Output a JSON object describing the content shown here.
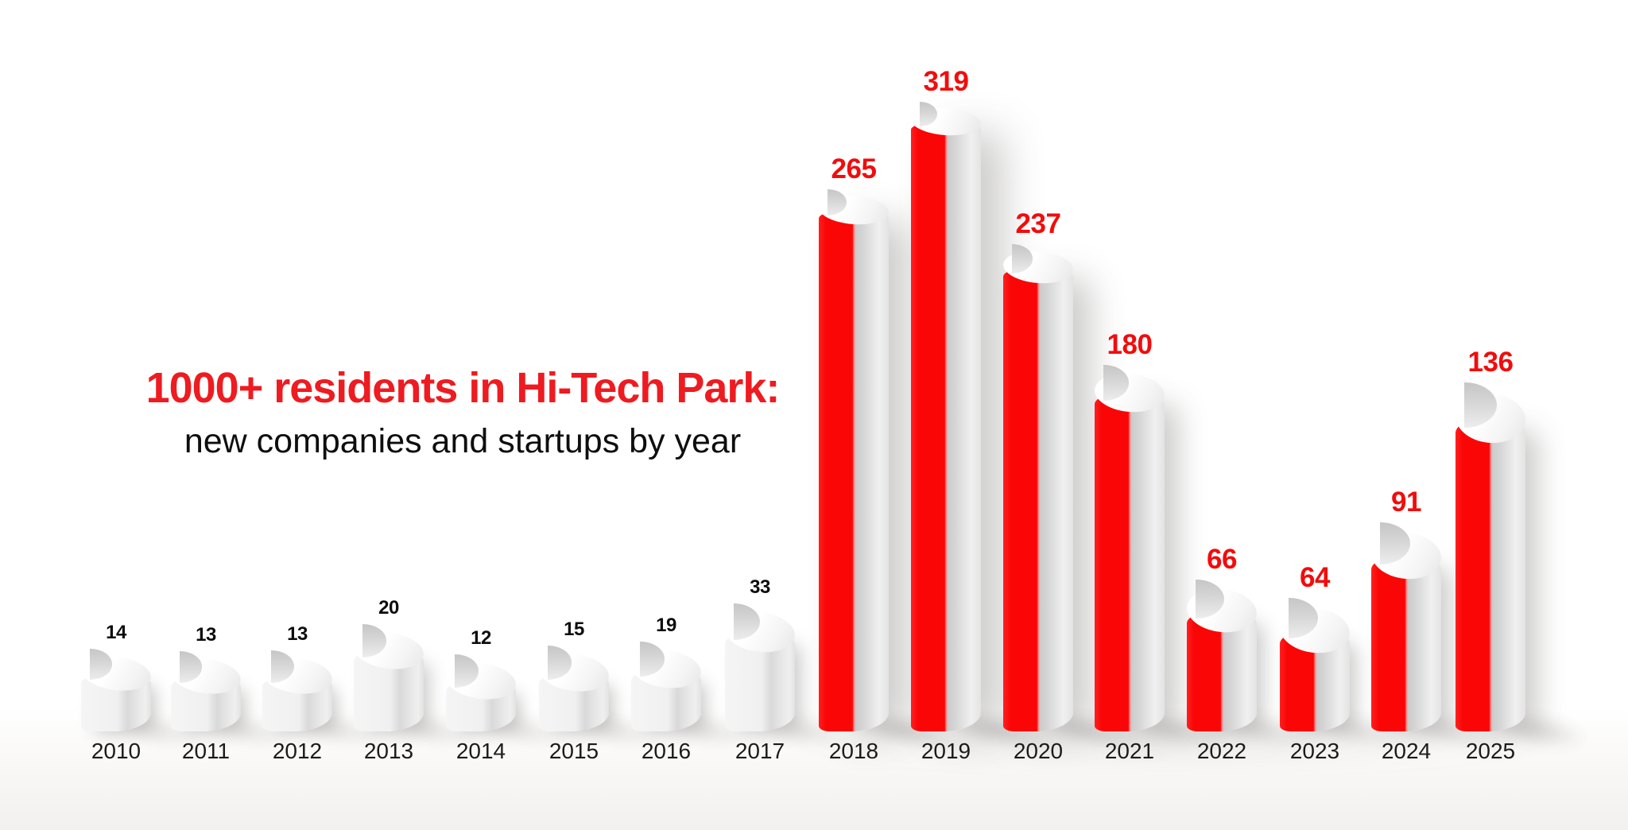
{
  "header": {
    "title": "1000+ residents in Hi-Tech Park:",
    "subtitle": "new companies and startups by year"
  },
  "colors": {
    "title_red": "#ee1b20",
    "value_label_red": "#f20c0c",
    "bar_red": "#fa0606",
    "value_label_black": "#0d0d0d",
    "year_label": "#1b1b1b",
    "bar_white_front": "#f1f1f1"
  },
  "chart_data": {
    "type": "bar",
    "title": "1000+ residents in Hi-Tech Park:",
    "subtitle": "new companies and startups by year",
    "categories": [
      "2010",
      "2011",
      "2012",
      "2013",
      "2014",
      "2015",
      "2016",
      "2017",
      "2018",
      "2019",
      "2020",
      "2021",
      "2022",
      "2023",
      "2024",
      "2025"
    ],
    "values": [
      14,
      13,
      13,
      20,
      12,
      15,
      19,
      33,
      265,
      319,
      237,
      180,
      66,
      64,
      91,
      136
    ],
    "bar_styles": [
      "white",
      "white",
      "white",
      "white",
      "white",
      "white",
      "white",
      "white",
      "red",
      "red",
      "red",
      "red",
      "red",
      "red",
      "red",
      "red"
    ],
    "value_label_colors": [
      "black",
      "black",
      "black",
      "black",
      "black",
      "black",
      "black",
      "black",
      "red",
      "red",
      "red",
      "red",
      "red",
      "red",
      "red",
      "red"
    ],
    "xlabel": "",
    "ylabel": "",
    "ylim": [
      0,
      320
    ],
    "grid": false,
    "legend": "none",
    "axes": "x category labels only, value labels above bars",
    "style_note": "3D glossy cylinder bars on white floor; 2010-2017 white cylinders with black value labels, 2018-2025 red-front cylinders with red value labels"
  }
}
